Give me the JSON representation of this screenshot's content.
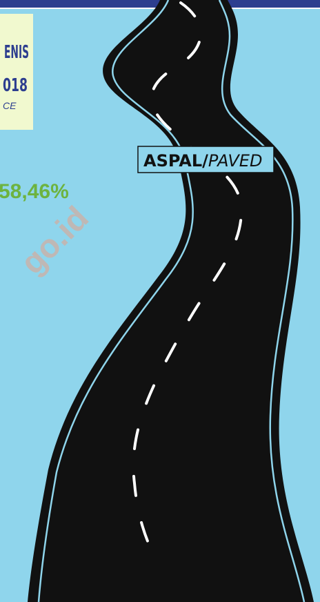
{
  "info_box": {
    "line1": "ENIS",
    "line2": "018",
    "line3": "CE"
  },
  "surface_label": {
    "main": "ASPAL/",
    "italic": "PAVED",
    "percent": "58,46%"
  },
  "watermark": "go.id"
}
